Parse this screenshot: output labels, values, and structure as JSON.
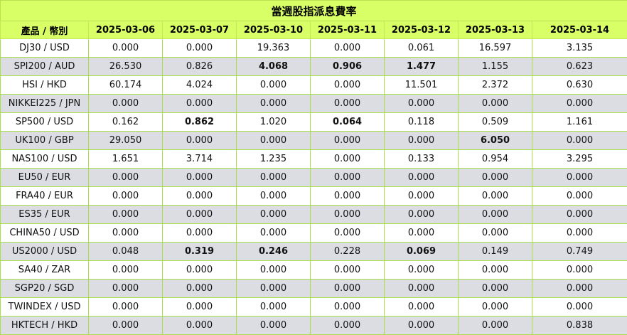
{
  "title": "當週股指派息費率",
  "header": {
    "product_label": "產品 / 幣別",
    "dates": [
      "2025-03-06",
      "2025-03-07",
      "2025-03-10",
      "2025-03-11",
      "2025-03-12",
      "2025-03-13",
      "2025-03-14"
    ]
  },
  "rows": [
    {
      "name": "DJ30 / USD",
      "values": [
        "0.000",
        "0.000",
        "19.363",
        "0.000",
        "0.061",
        "16.597",
        "3.135"
      ],
      "bold": []
    },
    {
      "name": "SPI200 / AUD",
      "values": [
        "26.530",
        "0.826",
        "4.068",
        "0.906",
        "1.477",
        "1.155",
        "0.623"
      ],
      "bold": [
        2,
        3,
        4
      ]
    },
    {
      "name": "HSI / HKD",
      "values": [
        "60.174",
        "4.024",
        "0.000",
        "0.000",
        "11.501",
        "2.372",
        "0.630"
      ],
      "bold": []
    },
    {
      "name": "NIKKEI225 / JPN",
      "values": [
        "0.000",
        "0.000",
        "0.000",
        "0.000",
        "0.000",
        "0.000",
        "0.000"
      ],
      "bold": []
    },
    {
      "name": "SP500 / USD",
      "values": [
        "0.162",
        "0.862",
        "1.020",
        "0.064",
        "0.118",
        "0.509",
        "1.161"
      ],
      "bold": [
        1,
        3
      ]
    },
    {
      "name": "UK100 / GBP",
      "values": [
        "29.050",
        "0.000",
        "0.000",
        "0.000",
        "0.000",
        "6.050",
        "0.000"
      ],
      "bold": [
        5
      ]
    },
    {
      "name": "NAS100 / USD",
      "values": [
        "1.651",
        "3.714",
        "1.235",
        "0.000",
        "0.133",
        "0.954",
        "3.295"
      ],
      "bold": []
    },
    {
      "name": "EU50 / EUR",
      "values": [
        "0.000",
        "0.000",
        "0.000",
        "0.000",
        "0.000",
        "0.000",
        "0.000"
      ],
      "bold": []
    },
    {
      "name": "FRA40 / EUR",
      "values": [
        "0.000",
        "0.000",
        "0.000",
        "0.000",
        "0.000",
        "0.000",
        "0.000"
      ],
      "bold": []
    },
    {
      "name": "ES35 / EUR",
      "values": [
        "0.000",
        "0.000",
        "0.000",
        "0.000",
        "0.000",
        "0.000",
        "0.000"
      ],
      "bold": []
    },
    {
      "name": "CHINA50 / USD",
      "values": [
        "0.000",
        "0.000",
        "0.000",
        "0.000",
        "0.000",
        "0.000",
        "0.000"
      ],
      "bold": []
    },
    {
      "name": "US2000 / USD",
      "values": [
        "0.048",
        "0.319",
        "0.246",
        "0.228",
        "0.069",
        "0.149",
        "0.749"
      ],
      "bold": [
        1,
        2,
        4
      ]
    },
    {
      "name": "SA40 / ZAR",
      "values": [
        "0.000",
        "0.000",
        "0.000",
        "0.000",
        "0.000",
        "0.000",
        "0.000"
      ],
      "bold": []
    },
    {
      "name": "SGP20 / SGD",
      "values": [
        "0.000",
        "0.000",
        "0.000",
        "0.000",
        "0.000",
        "0.000",
        "0.000"
      ],
      "bold": []
    },
    {
      "name": "TWINDEX / USD",
      "values": [
        "0.000",
        "0.000",
        "0.000",
        "0.000",
        "0.000",
        "0.000",
        "0.000"
      ],
      "bold": []
    },
    {
      "name": "HKTECH / HKD",
      "values": [
        "0.000",
        "0.000",
        "0.000",
        "0.000",
        "0.000",
        "0.000",
        "0.838"
      ],
      "bold": []
    }
  ],
  "colors": {
    "header_bg": "#d9ff66",
    "stripe": "#dcdde3",
    "border": "#a8e04a"
  }
}
